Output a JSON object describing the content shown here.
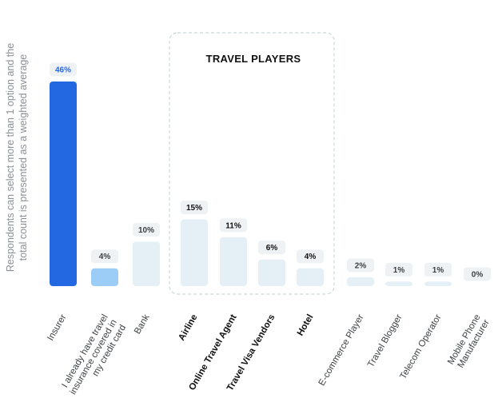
{
  "chart_data": {
    "type": "bar",
    "ylabel_lines": [
      "Respondents can select more than 1 option and the",
      "total count is presented as a weighted average"
    ],
    "group": {
      "title": "TRAVEL PLAYERS",
      "categories": [
        "Airline",
        "Online Travel Agent",
        "Travel Visa Vendors",
        "Hotel"
      ]
    },
    "ylim": [
      0,
      46
    ],
    "grid": false,
    "legend": "none",
    "categories": [
      {
        "label_lines": [
          "Insurer"
        ],
        "value": 46,
        "value_label": "46%",
        "color": "#2468e1",
        "label_color": "#2468e1",
        "bold": false
      },
      {
        "label_lines": [
          "I already have travel",
          "insurance covered in",
          "my credit card"
        ],
        "value": 4,
        "value_label": "4%",
        "color": "#9ccdf6",
        "label_color": "#3c4043",
        "bold": false
      },
      {
        "label_lines": [
          "Bank"
        ],
        "value": 10,
        "value_label": "10%",
        "color": "#e5f0f6",
        "label_color": "#3c4043",
        "bold": false
      },
      {
        "label_lines": [
          "Airline"
        ],
        "value": 15,
        "value_label": "15%",
        "color": "#e5f0f6",
        "label_color": "#111111",
        "bold": true
      },
      {
        "label_lines": [
          "Online Travel Agent"
        ],
        "value": 11,
        "value_label": "11%",
        "color": "#e5f0f6",
        "label_color": "#111111",
        "bold": true
      },
      {
        "label_lines": [
          "Travel Visa Vendors"
        ],
        "value": 6,
        "value_label": "6%",
        "color": "#e5f0f6",
        "label_color": "#111111",
        "bold": true
      },
      {
        "label_lines": [
          "Hotel"
        ],
        "value": 4,
        "value_label": "4%",
        "color": "#e5f0f6",
        "label_color": "#111111",
        "bold": true
      },
      {
        "label_lines": [
          "E-commerce Player"
        ],
        "value": 2,
        "value_label": "2%",
        "color": "#e5f0f6",
        "label_color": "#3c4043",
        "bold": false
      },
      {
        "label_lines": [
          "Travel Blogger"
        ],
        "value": 1,
        "value_label": "1%",
        "color": "#e5f0f6",
        "label_color": "#3c4043",
        "bold": false
      },
      {
        "label_lines": [
          "Telecom Operator"
        ],
        "value": 1,
        "value_label": "1%",
        "color": "#e5f0f6",
        "label_color": "#3c4043",
        "bold": false
      },
      {
        "label_lines": [
          "Mobile Phone",
          "Manufacturer"
        ],
        "value": 0,
        "value_label": "0%",
        "color": "#e5f0f6",
        "label_color": "#3c4043",
        "bold": false
      }
    ],
    "colors": {
      "badge_bg": "#eef2f4",
      "group_border": "#c9d7da",
      "ylabel": "#8a8f96"
    }
  }
}
